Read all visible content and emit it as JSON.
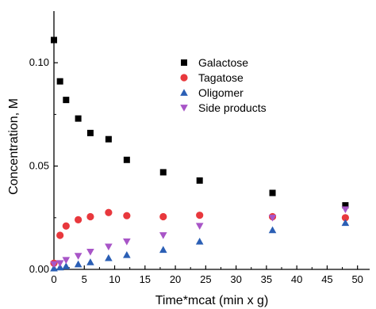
{
  "chart_data": {
    "type": "scatter",
    "xlabel": "Time*mcat (min x g)",
    "ylabel": "Concentration, M",
    "xlim": [
      0,
      52
    ],
    "ylim": [
      0,
      0.125
    ],
    "x_ticks": [
      0,
      5,
      10,
      15,
      20,
      25,
      30,
      35,
      40,
      45,
      50
    ],
    "x_tick_labels": [
      "0",
      "5",
      "10",
      "15",
      "20",
      "25",
      "30",
      "35",
      "40",
      "45",
      "50"
    ],
    "y_ticks": [
      0,
      0.05,
      0.1
    ],
    "y_tick_labels": [
      "0.00",
      "0.05",
      "0.10"
    ],
    "legend_position": "top-right",
    "grid": false,
    "series": [
      {
        "name": "Galactose",
        "marker": "square",
        "color": "#000000",
        "points": [
          [
            0,
            0.111
          ],
          [
            1,
            0.091
          ],
          [
            2,
            0.082
          ],
          [
            4,
            0.073
          ],
          [
            6,
            0.066
          ],
          [
            9,
            0.063
          ],
          [
            12,
            0.053
          ],
          [
            18,
            0.047
          ],
          [
            24,
            0.043
          ],
          [
            36,
            0.037
          ],
          [
            48,
            0.031
          ]
        ]
      },
      {
        "name": "Tagatose",
        "marker": "circle",
        "color": "#e8383d",
        "points": [
          [
            0,
            0.003
          ],
          [
            1,
            0.0165
          ],
          [
            2,
            0.021
          ],
          [
            4,
            0.024
          ],
          [
            6,
            0.0255
          ],
          [
            9,
            0.0275
          ],
          [
            12,
            0.026
          ],
          [
            18,
            0.0255
          ],
          [
            24,
            0.0262
          ],
          [
            36,
            0.0255
          ],
          [
            48,
            0.025
          ]
        ]
      },
      {
        "name": "Oligomer",
        "marker": "triangle-up",
        "color": "#2b5fb5",
        "points": [
          [
            0,
            0.0005
          ],
          [
            1,
            0.001
          ],
          [
            2,
            0.0015
          ],
          [
            4,
            0.0025
          ],
          [
            6,
            0.0035
          ],
          [
            9,
            0.0055
          ],
          [
            12,
            0.007
          ],
          [
            18,
            0.0095
          ],
          [
            24,
            0.0135
          ],
          [
            36,
            0.019
          ],
          [
            48,
            0.0225
          ]
        ]
      },
      {
        "name": "Side products",
        "marker": "triangle-down",
        "color": "#a855c7",
        "points": [
          [
            0,
            0.0025
          ],
          [
            1,
            0.003
          ],
          [
            2,
            0.0045
          ],
          [
            4,
            0.0065
          ],
          [
            6,
            0.0085
          ],
          [
            9,
            0.011
          ],
          [
            12,
            0.0135
          ],
          [
            18,
            0.0165
          ],
          [
            24,
            0.021
          ],
          [
            36,
            0.025
          ],
          [
            48,
            0.029
          ]
        ]
      }
    ]
  }
}
